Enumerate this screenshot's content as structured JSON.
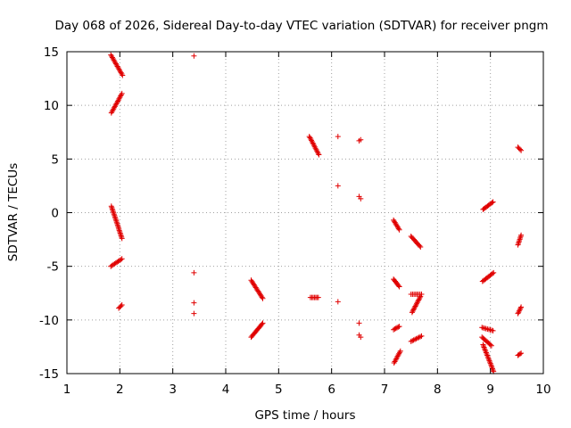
{
  "chart_data": {
    "type": "scatter",
    "title": "Day 068 of 2026, Sidereal Day-to-day VTEC variation (SDTVAR) for receiver pngm",
    "xlabel": "GPS time / hours",
    "ylabel": "SDTVAR / TECUs",
    "xlim": [
      1,
      10
    ],
    "ylim": [
      -15,
      15
    ],
    "xticks": [
      "1",
      "2",
      "3",
      "4",
      "5",
      "6",
      "7",
      "8",
      "9",
      "10"
    ],
    "yticks": [
      "15",
      "10",
      "5",
      "0",
      "-5",
      "-10",
      "-15"
    ],
    "grid": true,
    "marker": "+",
    "marker_color": "#e00000",
    "segments": [
      {
        "x0": 1.83,
        "y0": 14.7,
        "x1": 2.05,
        "y1": 12.8
      },
      {
        "x0": 1.84,
        "y0": 9.3,
        "x1": 2.04,
        "y1": 11.1
      },
      {
        "x0": 1.84,
        "y0": 0.6,
        "x1": 2.04,
        "y1": -2.4
      },
      {
        "x0": 1.83,
        "y0": -5.0,
        "x1": 2.04,
        "y1": -4.3
      },
      {
        "x0": 1.98,
        "y0": -8.9,
        "x1": 2.04,
        "y1": -8.6
      },
      {
        "x0": 4.48,
        "y0": -6.3,
        "x1": 4.7,
        "y1": -8.0
      },
      {
        "x0": 4.48,
        "y0": -11.6,
        "x1": 4.7,
        "y1": -10.3
      },
      {
        "x0": 5.58,
        "y0": 7.1,
        "x1": 5.76,
        "y1": 5.4
      },
      {
        "x0": 5.6,
        "y0": -7.9,
        "x1": 5.75,
        "y1": -7.9
      },
      {
        "x0": 7.17,
        "y0": -0.7,
        "x1": 7.28,
        "y1": -1.6
      },
      {
        "x0": 7.17,
        "y0": -6.2,
        "x1": 7.28,
        "y1": -6.9
      },
      {
        "x0": 7.17,
        "y0": -10.9,
        "x1": 7.28,
        "y1": -10.6
      },
      {
        "x0": 7.18,
        "y0": -14.0,
        "x1": 7.3,
        "y1": -12.9
      },
      {
        "x0": 7.5,
        "y0": -2.2,
        "x1": 7.68,
        "y1": -3.2
      },
      {
        "x0": 7.5,
        "y0": -7.6,
        "x1": 7.7,
        "y1": -7.6
      },
      {
        "x0": 7.52,
        "y0": -9.3,
        "x1": 7.68,
        "y1": -7.8
      },
      {
        "x0": 7.5,
        "y0": -12.0,
        "x1": 7.7,
        "y1": -11.5
      },
      {
        "x0": 8.86,
        "y0": 0.3,
        "x1": 9.05,
        "y1": 1.0
      },
      {
        "x0": 8.85,
        "y0": -6.4,
        "x1": 9.06,
        "y1": -5.6
      },
      {
        "x0": 8.84,
        "y0": -10.7,
        "x1": 9.05,
        "y1": -11.0
      },
      {
        "x0": 8.86,
        "y0": -12.3,
        "x1": 9.06,
        "y1": -14.8
      },
      {
        "x0": 8.84,
        "y0": -11.6,
        "x1": 9.02,
        "y1": -12.4
      },
      {
        "x0": 9.52,
        "y0": 6.1,
        "x1": 9.58,
        "y1": 5.8
      },
      {
        "x0": 9.52,
        "y0": -3.0,
        "x1": 9.58,
        "y1": -2.1
      },
      {
        "x0": 9.52,
        "y0": -9.4,
        "x1": 9.58,
        "y1": -8.8
      },
      {
        "x0": 9.52,
        "y0": -13.3,
        "x1": 9.58,
        "y1": -13.1
      }
    ],
    "points": [
      {
        "x": 3.4,
        "y": 14.6
      },
      {
        "x": 3.4,
        "y": -5.6
      },
      {
        "x": 3.4,
        "y": -8.4
      },
      {
        "x": 3.4,
        "y": -9.4
      },
      {
        "x": 6.12,
        "y": 7.1
      },
      {
        "x": 6.12,
        "y": 2.5
      },
      {
        "x": 6.12,
        "y": -8.3
      },
      {
        "x": 6.52,
        "y": 6.7
      },
      {
        "x": 6.55,
        "y": 6.8
      },
      {
        "x": 6.52,
        "y": 1.5
      },
      {
        "x": 6.55,
        "y": 1.3
      },
      {
        "x": 6.52,
        "y": -10.3
      },
      {
        "x": 6.52,
        "y": -11.4
      },
      {
        "x": 6.55,
        "y": -11.6
      }
    ]
  }
}
